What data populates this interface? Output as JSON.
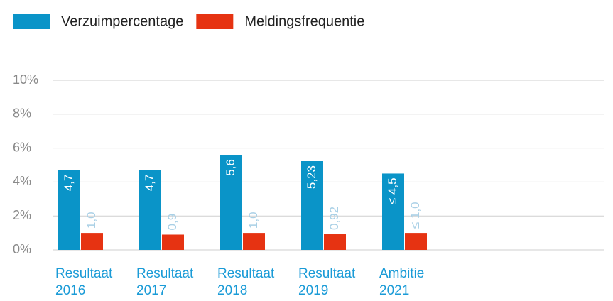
{
  "chart_data": {
    "type": "bar",
    "categories": [
      "Resultaat\n2016",
      "Resultaat\n2017",
      "Resultaat\n2018",
      "Resultaat\n2019",
      "Ambitie\n2021"
    ],
    "series": [
      {
        "name": "Verzuimpercentage",
        "color": "#0a94c8",
        "values": [
          4.7,
          4.7,
          5.6,
          5.23,
          4.5
        ],
        "value_labels": [
          "4,7",
          "4,7",
          "5,6",
          "5,23",
          "≤ 4,5"
        ]
      },
      {
        "name": "Meldingsfrequentie",
        "color": "#e63312",
        "values": [
          1.0,
          0.9,
          1.0,
          0.92,
          1.0
        ],
        "value_labels": [
          "1,0",
          "0,9",
          "1,0",
          "0,92",
          "≤ 1,0"
        ]
      }
    ],
    "ylim": [
      0,
      10
    ],
    "yticks": [
      {
        "value": 0,
        "label": "0%"
      },
      {
        "value": 2,
        "label": "2%"
      },
      {
        "value": 4,
        "label": "4%"
      },
      {
        "value": 6,
        "label": "6%"
      },
      {
        "value": 8,
        "label": "8%"
      },
      {
        "value": 10,
        "label": "10%"
      }
    ],
    "grid": true,
    "legend": "top"
  }
}
